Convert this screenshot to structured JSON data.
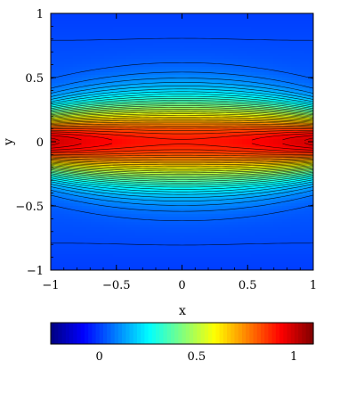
{
  "chart_data": {
    "type": "heatmap",
    "title": "",
    "xlabel": "x",
    "ylabel": "y",
    "xlim": [
      -1,
      1
    ],
    "ylim": [
      -1,
      1
    ],
    "x_ticks": [
      -1,
      -0.5,
      0,
      0.5,
      1
    ],
    "x_tick_labels": [
      "−1",
      "−0.5",
      "0",
      "0.5",
      "1"
    ],
    "y_ticks": [
      -1,
      -0.5,
      0,
      0.5,
      1
    ],
    "y_tick_labels": [
      "−1",
      "−0.5",
      "0",
      "0.5",
      "1"
    ],
    "field": {
      "description_values": "value at y=0 edge x=±1 ≈ 1.0, at center (0,0) ≈ 0.9, decays to ≈ 0 near y=±1",
      "peak_at_edges": 1.0,
      "peak_at_center": 0.9,
      "min_value": 0.0,
      "profile_y": [
        -1,
        -0.8,
        -0.6,
        -0.4,
        -0.3,
        -0.2,
        -0.1,
        0,
        0.1,
        0.2,
        0.3,
        0.4,
        0.6,
        0.8,
        1
      ],
      "profile_value_center": [
        0.0,
        0.02,
        0.06,
        0.17,
        0.28,
        0.46,
        0.72,
        0.9,
        0.72,
        0.46,
        0.28,
        0.17,
        0.06,
        0.02,
        0.0
      ],
      "profile_value_edge": [
        0.0,
        0.02,
        0.07,
        0.2,
        0.33,
        0.55,
        0.85,
        1.0,
        0.85,
        0.55,
        0.33,
        0.2,
        0.07,
        0.02,
        0.0
      ]
    },
    "contour_levels_count": 34,
    "colorbar": {
      "colormap": "jet",
      "range": [
        -0.25,
        1.1
      ],
      "ticks": [
        0,
        0.5,
        1
      ],
      "tick_labels": [
        "0",
        "0.5",
        "1"
      ],
      "orientation": "horizontal",
      "placement": "bottom"
    },
    "grid": false,
    "legend": "none"
  }
}
